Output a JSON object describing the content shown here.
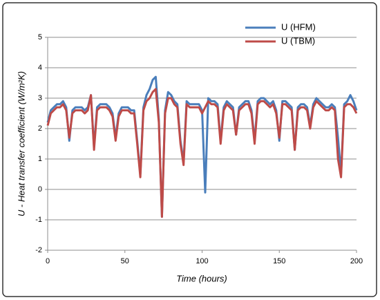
{
  "chart_data": {
    "type": "line",
    "xlabel": "Time (hours)",
    "ylabel": "U -  Heat transfer coefficient (W/m²K)",
    "x": [
      0,
      2,
      4,
      6,
      8,
      10,
      12,
      14,
      16,
      18,
      20,
      22,
      24,
      26,
      28,
      30,
      32,
      34,
      36,
      38,
      40,
      42,
      44,
      46,
      48,
      50,
      52,
      54,
      56,
      58,
      60,
      62,
      64,
      66,
      68,
      70,
      72,
      74,
      76,
      78,
      80,
      82,
      84,
      86,
      88,
      90,
      92,
      94,
      96,
      98,
      100,
      102,
      104,
      106,
      108,
      110,
      112,
      114,
      116,
      118,
      120,
      122,
      124,
      126,
      128,
      130,
      132,
      134,
      136,
      138,
      140,
      142,
      144,
      146,
      148,
      150,
      152,
      154,
      156,
      158,
      160,
      162,
      164,
      166,
      168,
      170,
      172,
      174,
      176,
      178,
      180,
      182,
      184,
      186,
      188,
      190,
      192,
      194,
      196,
      198,
      200
    ],
    "series": [
      {
        "name": "U (HFM)",
        "color": "#4a7ebb",
        "values": [
          2.2,
          2.6,
          2.7,
          2.8,
          2.8,
          2.9,
          2.7,
          1.6,
          2.6,
          2.7,
          2.7,
          2.7,
          2.6,
          2.7,
          3.1,
          1.4,
          2.7,
          2.8,
          2.8,
          2.8,
          2.7,
          2.5,
          1.7,
          2.5,
          2.7,
          2.7,
          2.7,
          2.6,
          2.6,
          1.6,
          0.5,
          2.7,
          3.1,
          3.3,
          3.6,
          3.7,
          2.3,
          -0.9,
          2.6,
          3.2,
          3.1,
          2.9,
          2.8,
          1.6,
          0.9,
          2.9,
          2.8,
          2.8,
          2.8,
          2.8,
          2.6,
          -0.1,
          3.0,
          2.9,
          2.9,
          2.8,
          1.6,
          2.7,
          2.9,
          2.8,
          2.7,
          1.8,
          2.7,
          2.8,
          2.9,
          2.9,
          2.6,
          1.6,
          2.9,
          3.0,
          3.0,
          2.9,
          2.8,
          2.9,
          2.6,
          1.6,
          2.9,
          2.9,
          2.8,
          2.7,
          1.3,
          2.7,
          2.8,
          2.8,
          2.7,
          2.1,
          2.8,
          3.0,
          2.9,
          2.8,
          2.7,
          2.7,
          2.8,
          2.7,
          1.7,
          0.5,
          2.8,
          2.9,
          3.1,
          2.9,
          2.6
        ]
      },
      {
        "name": "U (TBM)",
        "color": "#be4b48",
        "values": [
          2.1,
          2.5,
          2.6,
          2.7,
          2.7,
          2.8,
          2.6,
          1.7,
          2.5,
          2.6,
          2.6,
          2.6,
          2.5,
          2.6,
          3.1,
          1.3,
          2.6,
          2.7,
          2.7,
          2.7,
          2.6,
          2.4,
          1.6,
          2.4,
          2.6,
          2.6,
          2.6,
          2.5,
          2.5,
          1.5,
          0.4,
          2.6,
          2.9,
          3.0,
          3.2,
          3.3,
          2.2,
          -0.9,
          2.5,
          3.0,
          3.0,
          2.8,
          2.7,
          1.5,
          0.8,
          2.8,
          2.7,
          2.7,
          2.7,
          2.7,
          2.5,
          2.7,
          2.9,
          2.8,
          2.8,
          2.7,
          1.5,
          2.6,
          2.8,
          2.7,
          2.6,
          1.8,
          2.6,
          2.7,
          2.8,
          2.8,
          2.5,
          1.5,
          2.8,
          2.9,
          2.9,
          2.8,
          2.7,
          2.8,
          2.5,
          1.7,
          2.8,
          2.8,
          2.7,
          2.6,
          1.3,
          2.6,
          2.7,
          2.7,
          2.6,
          2.0,
          2.7,
          2.9,
          2.8,
          2.7,
          2.6,
          2.6,
          2.7,
          2.6,
          1.0,
          0.4,
          2.7,
          2.8,
          2.8,
          2.7,
          2.5
        ]
      }
    ],
    "xlim": [
      0,
      200
    ],
    "xticks": [
      0,
      50,
      100,
      150,
      200
    ],
    "ylim": [
      -2,
      5
    ],
    "yticks": [
      -2,
      -1,
      0,
      1,
      2,
      3,
      4,
      5
    ],
    "grid": true,
    "legend": "top-right"
  }
}
